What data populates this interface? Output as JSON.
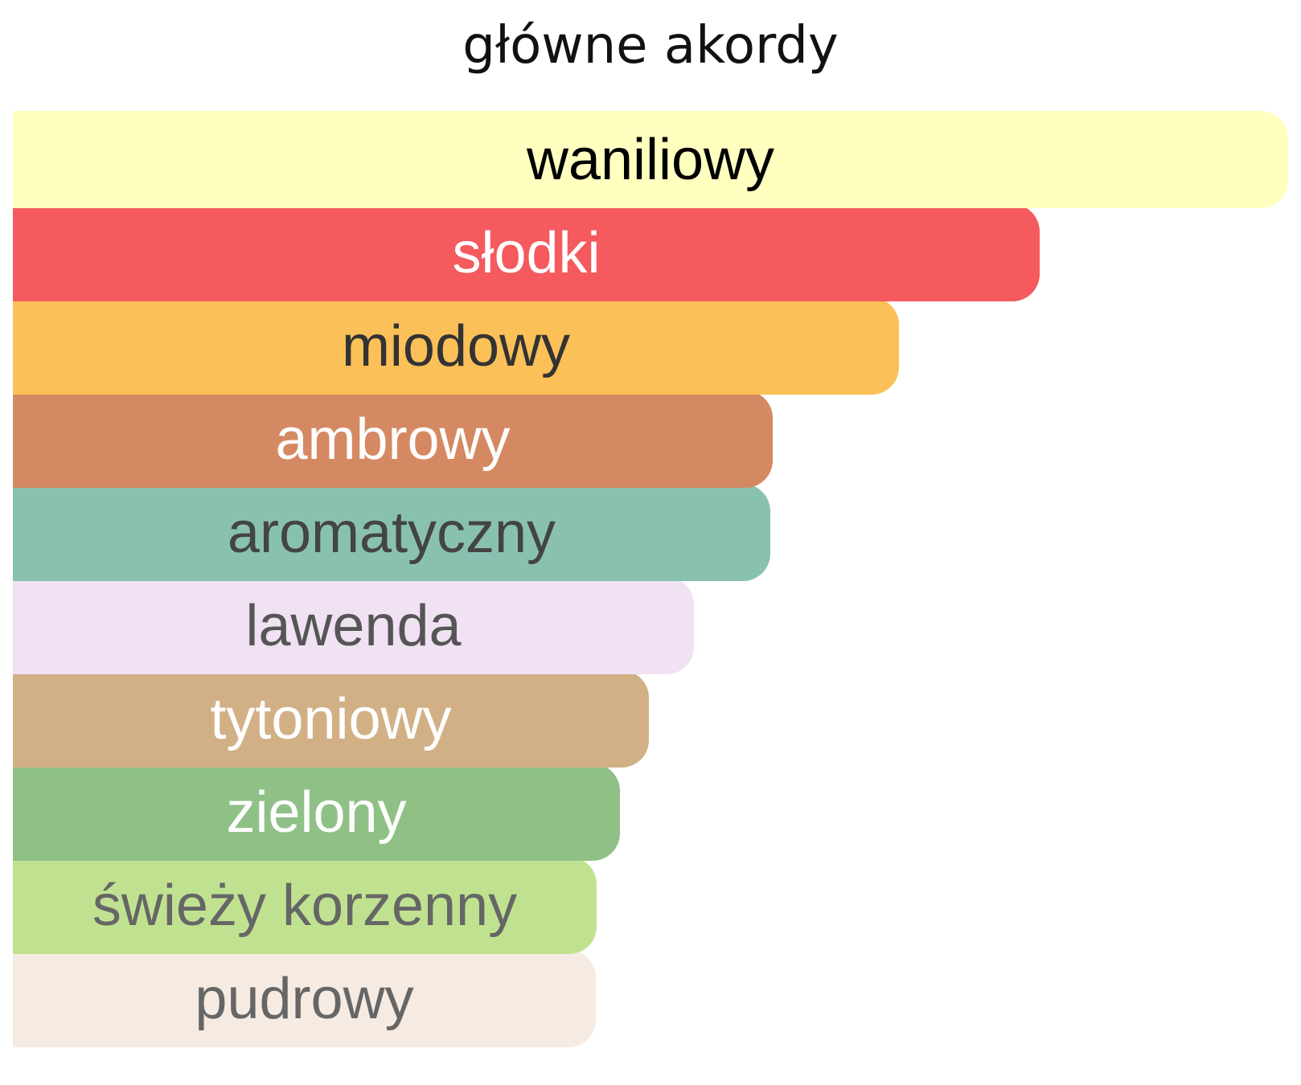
{
  "chart_data": {
    "type": "bar",
    "orientation": "horizontal",
    "title": "główne akordy",
    "categories": [
      "waniliowy",
      "słodki",
      "miodowy",
      "ambrowy",
      "aromatyczny",
      "lawenda",
      "tytoniowy",
      "zielony",
      "świeży korzenny",
      "pudrowy"
    ],
    "values": [
      100,
      80.5,
      69.5,
      59.6,
      59.4,
      53.4,
      49.9,
      47.6,
      45.8,
      45.7
    ],
    "xlim": [
      0,
      100
    ],
    "grid": false,
    "legend": "none",
    "colors": [
      "#ffffc0",
      "#f45a5e",
      "#fcc058",
      "#d58963",
      "#89c1b1",
      "#f0e2f2",
      "#d1b086",
      "#8fc186",
      "#c0e290",
      "#f5ebe2"
    ],
    "label_colors": [
      "#000000",
      "#ffffff",
      "#333333",
      "#ffffff",
      "#444444",
      "#555555",
      "#ffffff",
      "#ffffff",
      "#666666",
      "#666666"
    ]
  }
}
